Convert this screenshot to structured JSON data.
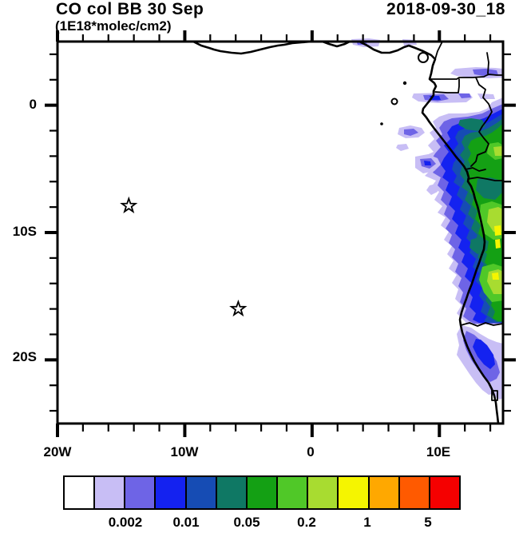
{
  "header": {
    "title": "CO col BB 30 Sep",
    "subtitle": "(1E18*molec/cm2)",
    "datetime": "2018-09-30_18"
  },
  "chart_data": {
    "type": "heatmap",
    "title": "CO col BB 30 Sep",
    "units": "1E18*molec/cm2",
    "timestamp": "2018-09-30_18",
    "description": "Filled-contour lat/lon map of biomass-burning CO column over the SE Atlantic and west-central African coast; plume hugs the coast from the Gulf of Guinea (~2N) to Namibia (~23S), strongest (yellow, ~1-5E18 molec/cm2) near the Angolan coast at 9S-12S, 12E-15E.",
    "x_axis": {
      "range_lon_deg": [
        -20,
        15
      ],
      "minor_tick_step_deg": 2,
      "ticks": [
        {
          "label": "20W",
          "lon": -20
        },
        {
          "label": "10W",
          "lon": -10
        },
        {
          "label": "0",
          "lon": 0
        },
        {
          "label": "10E",
          "lon": 10
        }
      ]
    },
    "y_axis": {
      "range_lat_deg": [
        -25,
        5
      ],
      "minor_tick_step_deg": 2,
      "ticks": [
        {
          "label": "0",
          "lat": 0
        },
        {
          "label": "10S",
          "lat": -10
        },
        {
          "label": "20S",
          "lat": -20
        }
      ]
    },
    "colorbar": {
      "labels": [
        "0.002",
        "0.01",
        "0.05",
        "0.2",
        "1",
        "5"
      ],
      "labeled_boundaries_after_cell": [
        2,
        4,
        6,
        8,
        10,
        12
      ],
      "colors": [
        "#FFFFFF",
        "#C8BEF5",
        "#6E64E6",
        "#1422F0",
        "#164CB4",
        "#0F7864",
        "#14A014",
        "#50C828",
        "#A8DC30",
        "#F5F500",
        "#FFA800",
        "#FF5A00",
        "#F50000"
      ]
    },
    "markers": [
      {
        "symbol": "open-star",
        "lon": -14.4,
        "lat": -7.9
      },
      {
        "symbol": "open-star",
        "lon": -5.8,
        "lat": -16.0
      }
    ]
  }
}
